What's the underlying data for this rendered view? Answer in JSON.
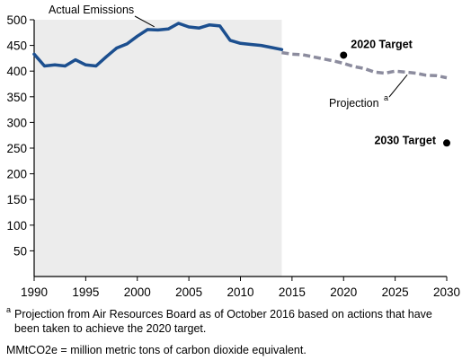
{
  "chart_data": {
    "type": "line",
    "title": "",
    "xlabel": "",
    "ylabel": "",
    "xlim": [
      1990,
      2030
    ],
    "ylim": [
      0,
      500
    ],
    "x_ticks": [
      1990,
      1995,
      2000,
      2005,
      2010,
      2015,
      2020,
      2025,
      2030
    ],
    "y_ticks": [
      50,
      100,
      150,
      200,
      250,
      300,
      350,
      400,
      450,
      500
    ],
    "grid": false,
    "shaded_region": {
      "from": 1990,
      "to": 2014,
      "color": "#ececec"
    },
    "series": [
      {
        "name": "Actual Emissions",
        "style": "solid",
        "color": "#1c4f8f",
        "x": [
          1990,
          1991,
          1992,
          1993,
          1994,
          1995,
          1996,
          1997,
          1998,
          1999,
          2000,
          2001,
          2002,
          2003,
          2004,
          2005,
          2006,
          2007,
          2008,
          2009,
          2010,
          2011,
          2012,
          2013,
          2014
        ],
        "y": [
          433,
          410,
          412,
          410,
          422,
          412,
          410,
          428,
          445,
          453,
          468,
          481,
          480,
          482,
          493,
          486,
          484,
          490,
          488,
          460,
          454,
          452,
          450,
          446,
          442
        ]
      },
      {
        "name": "Projection",
        "name_superscript": "a",
        "style": "dashed",
        "color": "#8c8c9e",
        "x": [
          2014,
          2015,
          2016,
          2017,
          2018,
          2019,
          2020,
          2021,
          2022,
          2023,
          2024,
          2025,
          2026,
          2027,
          2028,
          2029,
          2030
        ],
        "y": [
          436,
          433,
          432,
          428,
          424,
          420,
          415,
          409,
          405,
          398,
          396,
          400,
          398,
          396,
          392,
          391,
          387
        ]
      }
    ],
    "points": [
      {
        "label": "2020 Target",
        "x": 2020,
        "y": 431
      },
      {
        "label": "2030 Target",
        "x": 2030,
        "y": 260
      }
    ]
  },
  "footnotes": {
    "marker": "a",
    "projection_note_line1": "Projection from Air Resources Board as of October 2016 based on actions that have",
    "projection_note_line2": "been taken to achieve the 2020 target.",
    "unit_note": "MMtCO2e = million metric tons of carbon dioxide equivalent."
  },
  "colors": {
    "actual": "#1c4f8f",
    "projection": "#8c8c9e",
    "shade": "#ececec",
    "axis": "#000000"
  }
}
